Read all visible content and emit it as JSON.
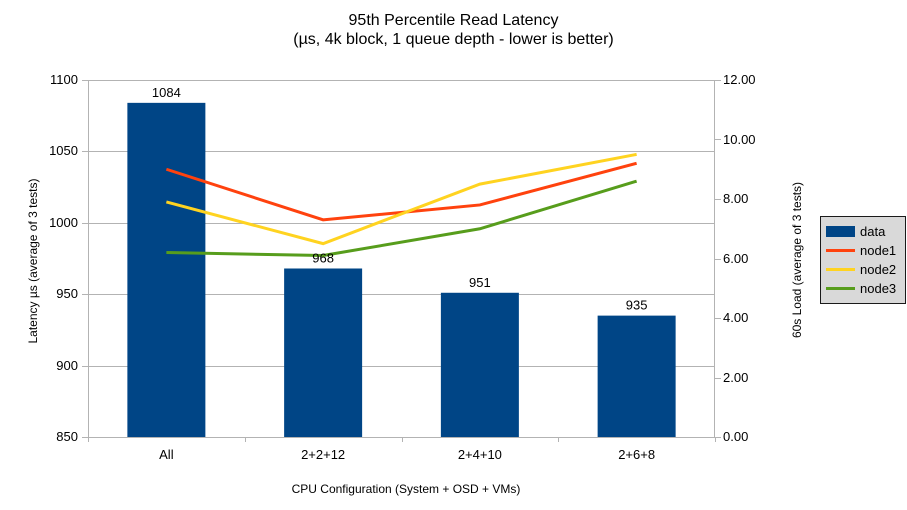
{
  "title": {
    "line1": "95th Percentile Read Latency",
    "line2": "(µs, 4k block, 1 queue depth - lower is better)"
  },
  "chart_data": {
    "type": "combo-bar-line",
    "categories": [
      "All",
      "2+2+12",
      "2+4+10",
      "2+6+8"
    ],
    "series": [
      {
        "name": "data",
        "type": "bar",
        "axis": "left",
        "color": "#004586",
        "values": [
          1084,
          968,
          951,
          935
        ],
        "data_labels": [
          "1084",
          "968",
          "951",
          "935"
        ]
      },
      {
        "name": "node1",
        "type": "line",
        "axis": "right",
        "color": "#FF420E",
        "values": [
          9.0,
          7.3,
          7.8,
          9.2
        ]
      },
      {
        "name": "node2",
        "type": "line",
        "axis": "right",
        "color": "#FFD320",
        "values": [
          7.9,
          6.5,
          8.5,
          9.5
        ]
      },
      {
        "name": "node3",
        "type": "line",
        "axis": "right",
        "color": "#579D1C",
        "values": [
          6.2,
          6.1,
          7.0,
          8.6
        ]
      }
    ],
    "left_axis": {
      "title": "Latency µs (average of 3 tests)",
      "min": 850,
      "max": 1100,
      "step": 50,
      "tick_labels": [
        "850",
        "900",
        "950",
        "1000",
        "1050",
        "1100"
      ]
    },
    "right_axis": {
      "title": "60s Load (average of 3 tests)",
      "min": 0,
      "max": 12,
      "step": 2,
      "tick_labels": [
        "0.00",
        "2.00",
        "4.00",
        "6.00",
        "8.00",
        "10.00",
        "12.00"
      ]
    },
    "x_axis": {
      "title": "CPU Configuration (System + OSD + VMs)"
    },
    "legend": {
      "position": "right",
      "background": "#D9D9D9",
      "border": "#1A1A1A",
      "entries": [
        "data",
        "node1",
        "node2",
        "node3"
      ]
    },
    "grid": {
      "horizontal": true,
      "vertical": false,
      "color": "#B3B3B3"
    },
    "background": "#FFFFFF"
  }
}
